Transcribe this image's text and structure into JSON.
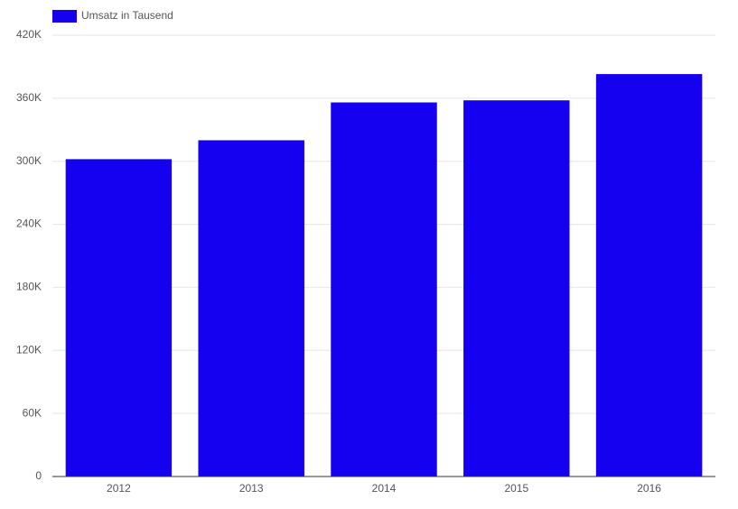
{
  "chart_data": {
    "type": "bar",
    "categories": [
      "2012",
      "2013",
      "2014",
      "2015",
      "2016"
    ],
    "series": [
      {
        "name": "Umsatz in Tausend",
        "color": "#1500ef",
        "values": [
          302000,
          320000,
          356000,
          358000,
          383000
        ]
      }
    ],
    "ylim": [
      0,
      420000
    ],
    "yticks": [
      0,
      {
        "value": 60000,
        "label": "60K"
      },
      {
        "value": 120000,
        "label": "120K"
      },
      {
        "value": 180000,
        "label": "180K"
      },
      {
        "value": 240000,
        "label": "240K"
      },
      {
        "value": 300000,
        "label": "300K"
      },
      {
        "value": 360000,
        "label": "360K"
      },
      {
        "value": 420000,
        "label": "420K"
      }
    ],
    "grid": true,
    "legend": "top-left"
  }
}
